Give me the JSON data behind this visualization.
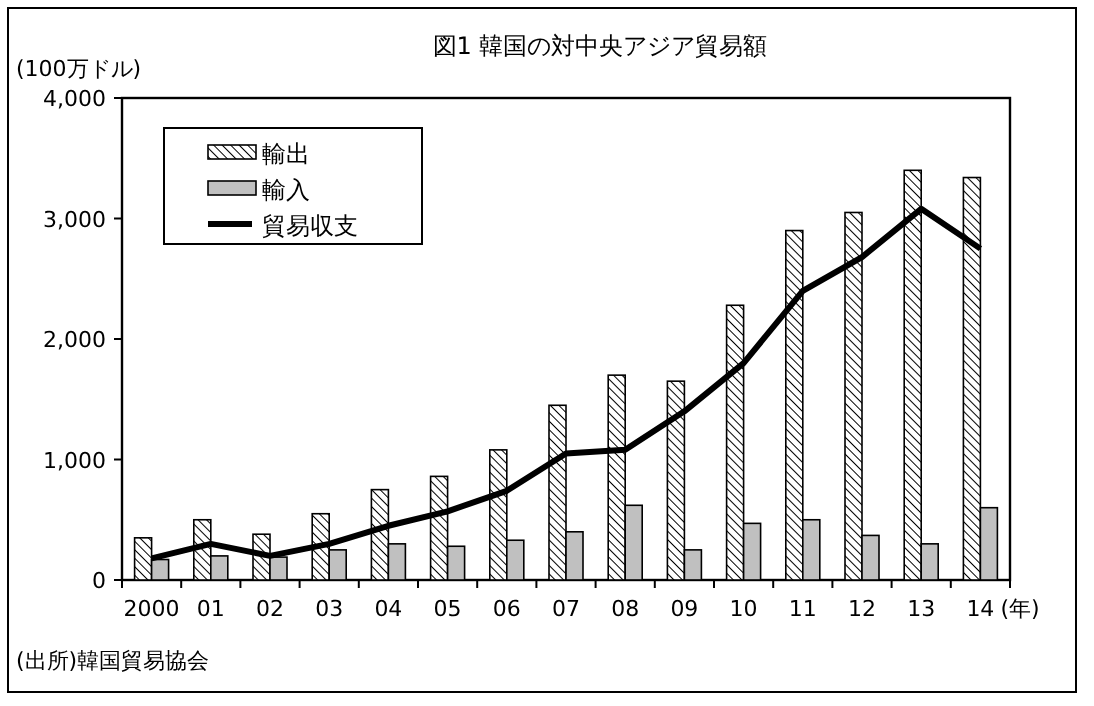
{
  "chart_data": {
    "type": "bar",
    "title": "図1  韓国の対中央アジア貿易額",
    "ylabel": "(100万ドル)",
    "xlabel": "(年)",
    "annotations": [
      "(出所)韓国貿易協会"
    ],
    "categories": [
      "2000",
      "01",
      "02",
      "03",
      "04",
      "05",
      "06",
      "07",
      "08",
      "09",
      "10",
      "11",
      "12",
      "13",
      "14"
    ],
    "series": [
      {
        "name": "輸出",
        "color": "#000000",
        "values": [
          350,
          500,
          380,
          550,
          750,
          860,
          1080,
          1450,
          1700,
          1650,
          2280,
          2900,
          3050,
          3400,
          3340
        ]
      },
      {
        "name": "輸入",
        "color": "#c0c0c0",
        "values": [
          170,
          200,
          190,
          250,
          300,
          280,
          330,
          400,
          620,
          250,
          470,
          500,
          370,
          300,
          600
        ]
      },
      {
        "name": "貿易収支",
        "type": "line",
        "color": "#000000",
        "values": [
          180,
          300,
          200,
          300,
          450,
          570,
          740,
          1050,
          1080,
          1400,
          1800,
          2400,
          2680,
          3080,
          2750
        ]
      }
    ],
    "ylim": [
      0,
      4000
    ],
    "yticks": [
      {
        "value": 0,
        "label": "0"
      },
      {
        "value": 1000,
        "label": "1,000"
      },
      {
        "value": 2000,
        "label": "2,000"
      },
      {
        "value": 3000,
        "label": "3,000"
      },
      {
        "value": 4000,
        "label": "4,000"
      }
    ],
    "grid": false,
    "legend": "top left",
    "line_style": "solid"
  }
}
